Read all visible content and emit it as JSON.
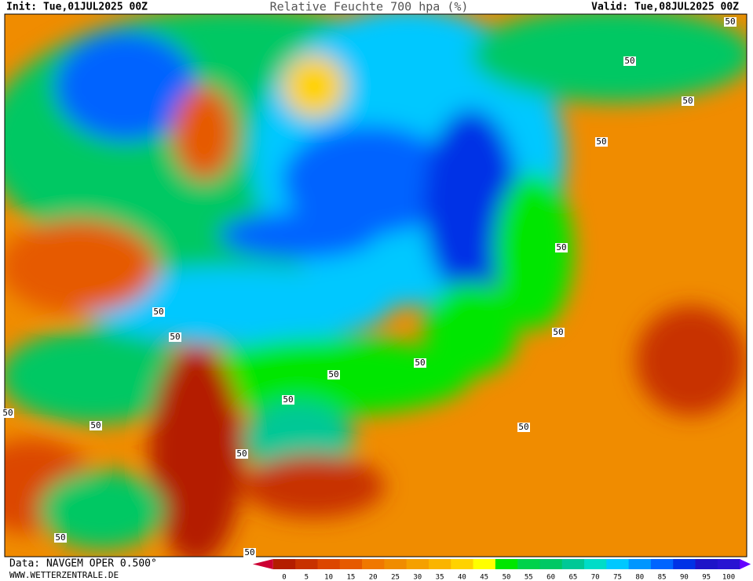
{
  "header": {
    "init": "Init: Tue,01JUL2025 00Z",
    "title": "Relative Feuchte 700 hpa (%)",
    "valid": "Valid: Tue,08JUL2025 00Z"
  },
  "footer": {
    "data": "Data: NAVGEM OPER 0.500°",
    "site": "WWW.WETTERZENTRALE.DE"
  },
  "colorbar": {
    "ticks": [
      0,
      5,
      10,
      15,
      20,
      25,
      30,
      35,
      40,
      45,
      50,
      55,
      60,
      65,
      70,
      75,
      80,
      85,
      90,
      95,
      100
    ],
    "colors": [
      "#b41e00",
      "#c83200",
      "#dc4600",
      "#e65a00",
      "#f07800",
      "#f08c00",
      "#f5a000",
      "#fab400",
      "#ffd200",
      "#ffff00",
      "#00e600",
      "#00d24b",
      "#00c864",
      "#00c896",
      "#00dcc8",
      "#00c8ff",
      "#0096ff",
      "#0064ff",
      "#0032e6",
      "#1e14c8",
      "#2814d2"
    ],
    "under": "#cc0033",
    "over": "#6400ff"
  },
  "contour_labels": [
    "50",
    "50",
    "50",
    "50",
    "50",
    "50",
    "50",
    "50",
    "50",
    "50",
    "50",
    "50",
    "50",
    "50",
    "50",
    "50",
    "50"
  ]
}
